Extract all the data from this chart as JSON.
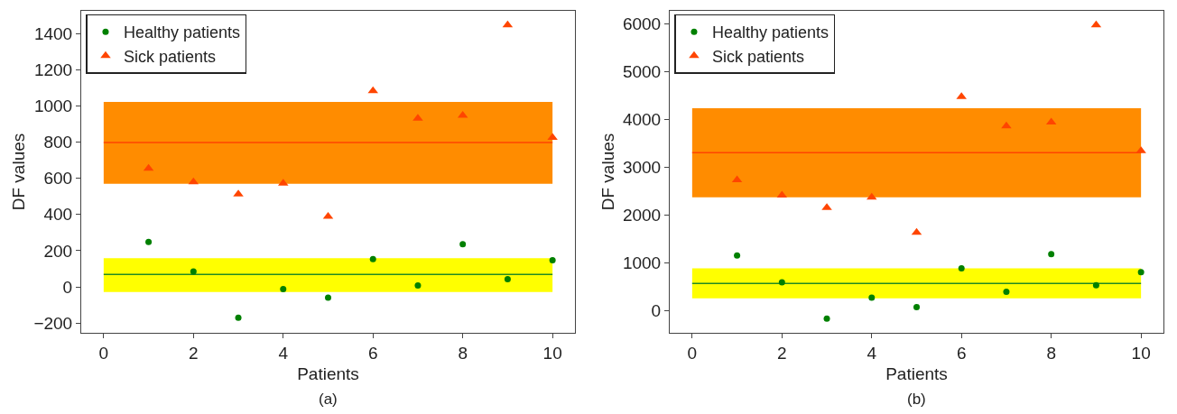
{
  "chart_data": [
    {
      "type": "scatter",
      "xlabel": "Patients",
      "ylabel": "DF values",
      "annotations": [
        "(a)"
      ],
      "x": [
        1,
        2,
        3,
        4,
        5,
        6,
        7,
        8,
        9,
        10
      ],
      "series": [
        {
          "name": "Healthy patients",
          "color": "#008000",
          "marker": "circle",
          "values": [
            248,
            85,
            -171,
            -12,
            -59,
            153,
            8,
            236,
            43,
            147
          ]
        },
        {
          "name": "Sick patients",
          "color": "#ff4500",
          "marker": "triangle",
          "values": [
            655,
            580,
            513,
            572,
            389,
            1083,
            932,
            948,
            1447,
            826
          ]
        }
      ],
      "bands": [
        {
          "axis": "y",
          "from": 570,
          "to": 1022,
          "color": "#ff8c00"
        },
        {
          "axis": "y",
          "from": -28,
          "to": 159,
          "color": "#ffff00"
        }
      ],
      "ref_lines": [
        {
          "axis": "y",
          "value": 798,
          "color": "#ff4500"
        },
        {
          "axis": "y",
          "value": 69,
          "color": "#228b22"
        }
      ],
      "xlim": [
        -0.5,
        10.5
      ],
      "xticks": [
        0,
        2,
        4,
        6,
        8,
        10
      ],
      "ylim": [
        -254,
        1526
      ],
      "yticks": [
        -200,
        0,
        200,
        400,
        600,
        800,
        1000,
        1200,
        1400
      ],
      "grid": false,
      "legend": "top left"
    },
    {
      "type": "scatter",
      "xlabel": "Patients",
      "ylabel": "DF values",
      "annotations": [
        "(b)"
      ],
      "x": [
        1,
        2,
        3,
        4,
        5,
        6,
        7,
        8,
        9,
        10
      ],
      "series": [
        {
          "name": "Healthy patients",
          "color": "#008000",
          "marker": "circle",
          "values": [
            1160,
            600,
            -160,
            280,
            80,
            890,
            400,
            1190,
            540,
            810
          ]
        },
        {
          "name": "Sick patients",
          "color": "#ff4500",
          "marker": "triangle",
          "values": [
            2740,
            2420,
            2160,
            2380,
            1640,
            4480,
            3870,
            3950,
            5980,
            3350
          ]
        }
      ],
      "bands": [
        {
          "axis": "y",
          "from": 2380,
          "to": 4240,
          "color": "#ff8c00"
        },
        {
          "axis": "y",
          "from": 264,
          "to": 891,
          "color": "#ffff00"
        }
      ],
      "ref_lines": [
        {
          "axis": "y",
          "value": 3310,
          "color": "#ff4500"
        },
        {
          "axis": "y",
          "value": 574,
          "color": "#228b22"
        }
      ],
      "xlim": [
        -0.5,
        10.5
      ],
      "xticks": [
        0,
        2,
        4,
        6,
        8,
        10
      ],
      "ylim": [
        -457,
        6279
      ],
      "yticks": [
        0,
        1000,
        2000,
        3000,
        4000,
        5000,
        6000
      ],
      "grid": false,
      "legend": "top left"
    }
  ]
}
